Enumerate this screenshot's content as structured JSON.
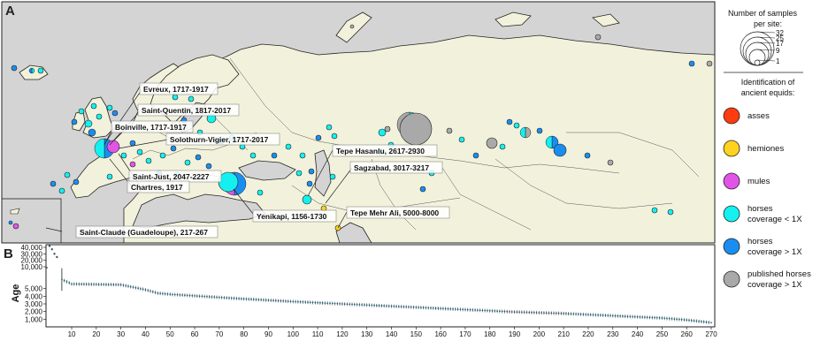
{
  "panels": {
    "a": "A",
    "b": "B"
  },
  "map_labels": [
    {
      "id": "evreux",
      "text": "Evreux, 1717-1917"
    },
    {
      "id": "saint-quentin",
      "text": "Saint-Quentin, 1817-2017"
    },
    {
      "id": "boinville",
      "text": "Boinville, 1717-1917"
    },
    {
      "id": "solothurn",
      "text": "Solothurn-Vigier, 1717-2017"
    },
    {
      "id": "saint-just",
      "text": "Saint-Just, 2047-2227"
    },
    {
      "id": "chartres",
      "text": "Chartres, 1917"
    },
    {
      "id": "saint-claude",
      "text": "Saint-Claude (Guadeloupe), 217-267"
    },
    {
      "id": "yenikapi",
      "text": "Yenikapi, 1156-1730"
    },
    {
      "id": "tepe-hasanlu",
      "text": "Tepe Hasanlu, 2617-2930"
    },
    {
      "id": "sagzabad",
      "text": "Sagzabad, 3017-3217"
    },
    {
      "id": "tepe-mehr-ali",
      "text": "Tepe Mehr Ali, 5000-8000"
    }
  ],
  "size_legend": {
    "title_line1": "Number of samples",
    "title_line2": "per site:",
    "values": [
      "32",
      "25",
      "17",
      "9",
      "1"
    ]
  },
  "category_legend": {
    "title_line1": "Identification of",
    "title_line2": "ancient equids:",
    "items": [
      {
        "id": "asses",
        "lines": [
          "asses"
        ],
        "color": "#ff3b10"
      },
      {
        "id": "hemiones",
        "lines": [
          "hemiones"
        ],
        "color": "#ffd21f"
      },
      {
        "id": "mules",
        "lines": [
          "mules"
        ],
        "color": "#e055e6"
      },
      {
        "id": "horses-low",
        "lines": [
          "horses",
          "coverage < 1X"
        ],
        "color": "#14f0f0"
      },
      {
        "id": "horses-high",
        "lines": [
          "horses",
          "coverage > 1X"
        ],
        "color": "#1a8ef0"
      },
      {
        "id": "published",
        "lines": [
          "published horses",
          "coverage > 1X"
        ],
        "color": "#a9a9a9"
      }
    ]
  },
  "chart_data": {
    "type": "scatter",
    "xlabel": "",
    "ylabel": "Age",
    "x_ticks": [
      10,
      20,
      30,
      40,
      50,
      60,
      70,
      80,
      90,
      100,
      110,
      120,
      130,
      140,
      150,
      160,
      170,
      180,
      190,
      200,
      210,
      220,
      230,
      240,
      250,
      260,
      270
    ],
    "xlim": [
      1,
      270
    ],
    "y_ticks_upper": [
      "40,000",
      "30,000",
      "20,000",
      "10,000"
    ],
    "y_ticks_lower": [
      "5,000",
      "4,000",
      "3,000",
      "2,000",
      "1,000"
    ],
    "series": [
      {
        "points": [
          {
            "x": 1,
            "y": 42000
          },
          {
            "x": 2,
            "y": 37000
          },
          {
            "x": 3,
            "y": 30000
          },
          {
            "x": 4,
            "y": 25000
          },
          {
            "x": 6,
            "y": 6200
          },
          {
            "x": 10,
            "y": 5600
          },
          {
            "x": 20,
            "y": 5550
          },
          {
            "x": 30,
            "y": 5500
          },
          {
            "x": 40,
            "y": 4850
          },
          {
            "x": 45,
            "y": 4400
          },
          {
            "x": 50,
            "y": 4250
          },
          {
            "x": 60,
            "y": 4050
          },
          {
            "x": 70,
            "y": 3850
          },
          {
            "x": 80,
            "y": 3650
          },
          {
            "x": 90,
            "y": 3480
          },
          {
            "x": 100,
            "y": 3300
          },
          {
            "x": 110,
            "y": 3150
          },
          {
            "x": 120,
            "y": 3000
          },
          {
            "x": 130,
            "y": 2850
          },
          {
            "x": 140,
            "y": 2700
          },
          {
            "x": 150,
            "y": 2550
          },
          {
            "x": 160,
            "y": 2400
          },
          {
            "x": 170,
            "y": 2250
          },
          {
            "x": 180,
            "y": 2100
          },
          {
            "x": 190,
            "y": 1950
          },
          {
            "x": 200,
            "y": 1850
          },
          {
            "x": 210,
            "y": 1750
          },
          {
            "x": 220,
            "y": 1600
          },
          {
            "x": 230,
            "y": 1450
          },
          {
            "x": 240,
            "y": 1300
          },
          {
            "x": 250,
            "y": 1150
          },
          {
            "x": 260,
            "y": 900
          },
          {
            "x": 270,
            "y": 550
          }
        ]
      }
    ]
  }
}
